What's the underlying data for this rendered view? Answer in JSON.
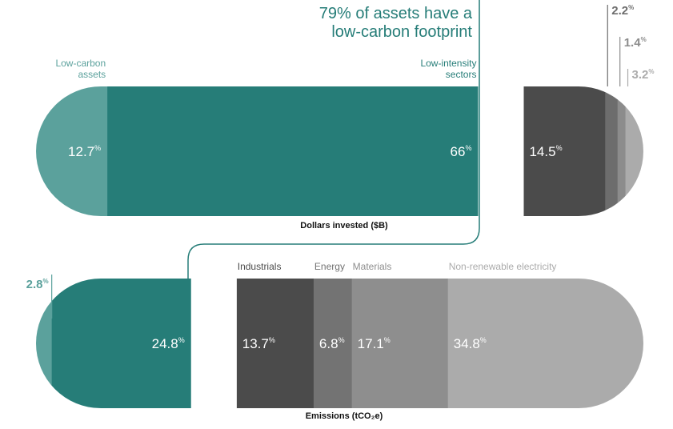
{
  "chart_data": [
    {
      "type": "stacked_bar",
      "title": "Dollars invested ($B)",
      "unit": "%",
      "annotation": "79% of assets have a low-carbon footprint",
      "groups": [
        {
          "segments": [
            {
              "name": "Low-carbon assets",
              "value": 12.7,
              "color": "#5ba19c"
            },
            {
              "name": "Low-intensity sectors",
              "value": 66,
              "color": "#267d78"
            }
          ]
        },
        {
          "segments": [
            {
              "value": 14.5,
              "color": "#4b4b4b"
            },
            {
              "value": 2.2,
              "color": "#6d6d6d"
            },
            {
              "value": 1.4,
              "color": "#8c8c8c"
            },
            {
              "value": 3.2,
              "color": "#ababab"
            }
          ]
        }
      ]
    },
    {
      "type": "stacked_bar",
      "title": "Emissions (tCO₂e)",
      "unit": "%",
      "groups": [
        {
          "segments": [
            {
              "value": 2.8,
              "color": "#5ba19c"
            },
            {
              "value": 24.8,
              "color": "#267d78"
            }
          ]
        },
        {
          "segments": [
            {
              "name": "Industrials",
              "value": 13.7,
              "color": "#4b4b4b"
            },
            {
              "name": "Energy",
              "value": 6.8,
              "color": "#737373"
            },
            {
              "name": "Materials",
              "value": 17.1,
              "color": "#8e8e8e"
            },
            {
              "name": "Non-renewable electricity",
              "value": 34.8,
              "color": "#ababab"
            }
          ]
        }
      ]
    }
  ]
}
